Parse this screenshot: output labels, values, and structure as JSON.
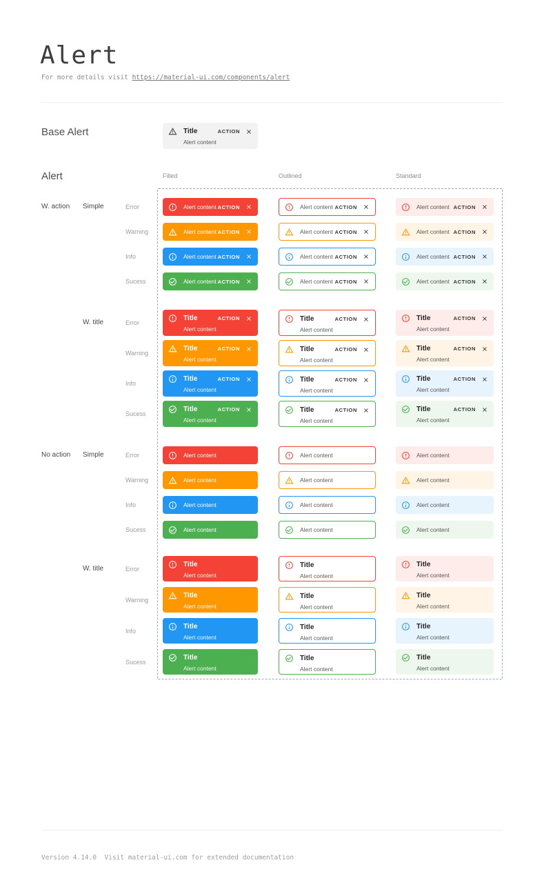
{
  "page": {
    "title": "Alert",
    "subtitle_prefix": "For more details visit ",
    "subtitle_link": "https://material-ui.com/components/alert"
  },
  "base_alert": {
    "label": "Base Alert",
    "title": "Title",
    "content": "Alert content",
    "action": "ACTION",
    "bg": "#f2f2f2",
    "icon_color": "#3f3f3f"
  },
  "grid": {
    "section_label": "Alert",
    "columns": [
      "Filled",
      "Outlined",
      "Standard"
    ],
    "severities": [
      {
        "label": "Error",
        "key": "error"
      },
      {
        "label": "Warning",
        "key": "warning"
      },
      {
        "label": "Info",
        "key": "info"
      },
      {
        "label": "Sucess",
        "key": "success"
      }
    ],
    "groups": [
      {
        "action_label": "W. action",
        "type_label": "Simple",
        "with_title": false,
        "with_action": true
      },
      {
        "action_label": "",
        "type_label": "W. title",
        "with_title": true,
        "with_action": true
      },
      {
        "action_label": "No action",
        "type_label": "Simple",
        "with_title": false,
        "with_action": false
      },
      {
        "action_label": "",
        "type_label": "W. title",
        "with_title": true,
        "with_action": false
      }
    ],
    "alert_text": {
      "title": "Title",
      "content": "Alert content",
      "action": "ACTION"
    }
  },
  "colors": {
    "error": {
      "main": "#f44336",
      "standard_bg": "#fdecea"
    },
    "warning": {
      "main": "#ff9800",
      "standard_bg": "#fff4e5"
    },
    "info": {
      "main": "#2196f3",
      "standard_bg": "#e8f4fd"
    },
    "success": {
      "main": "#4caf50",
      "standard_bg": "#edf7ed"
    },
    "filled_text": "#ffffff",
    "filled_body_text": "rgba(255,255,255,0.92)",
    "dark_title": "rgba(0,0,0,0.87)",
    "dark_body": "rgba(0,0,0,0.66)",
    "dark_action": "rgba(0,0,0,0.8)"
  },
  "footer": {
    "text": "Version 4.14.0  Visit material-ui.com for extended documentation"
  }
}
